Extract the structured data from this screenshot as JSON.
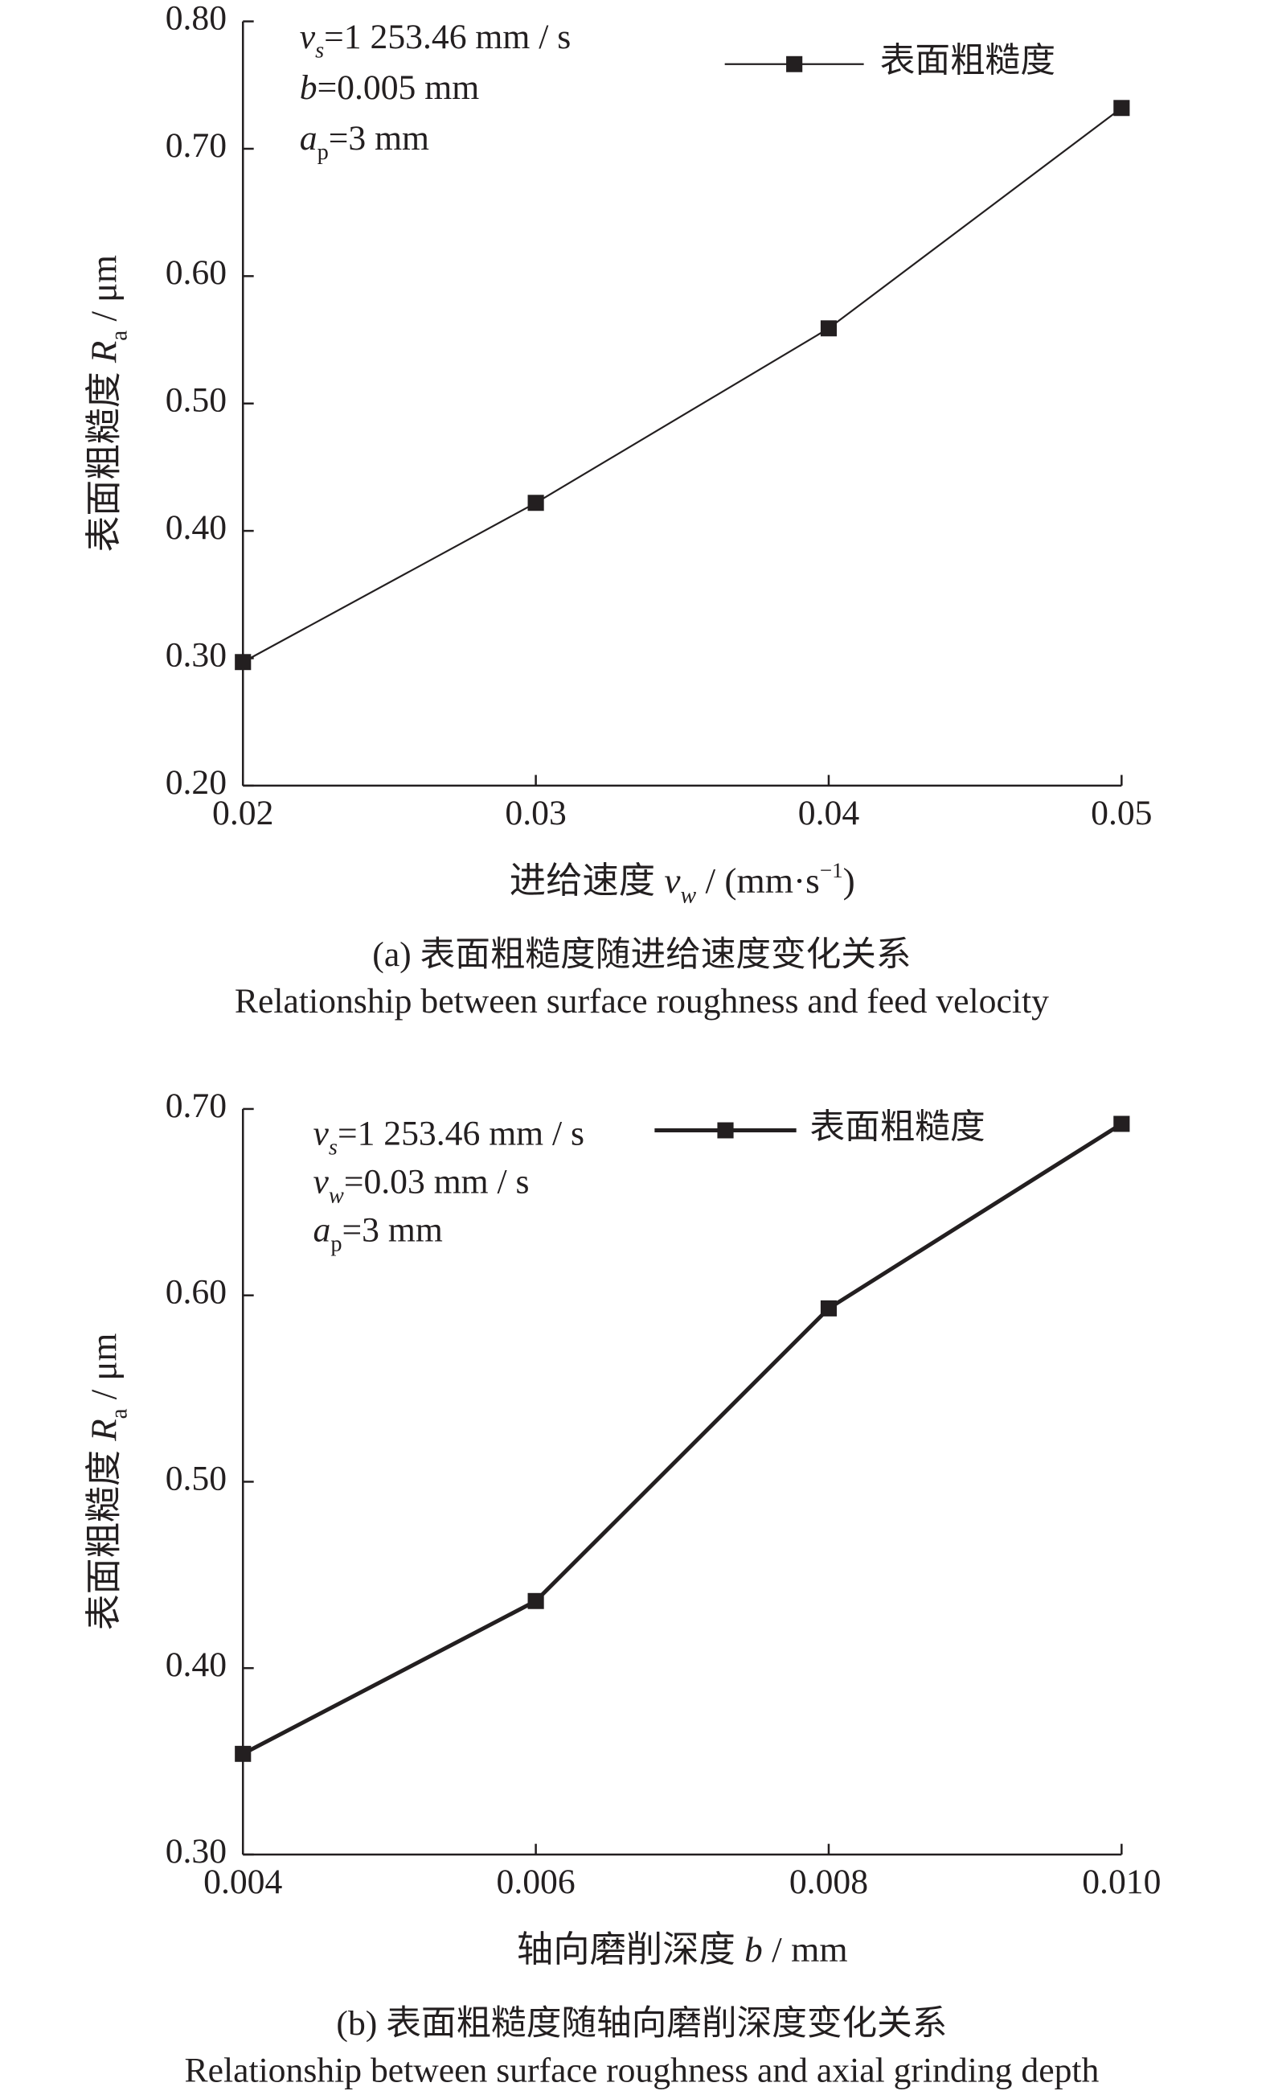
{
  "chart_data": [
    {
      "type": "line",
      "annotations": [
        [
          {
            "text": "v",
            "style": "italic"
          },
          {
            "text": "s",
            "style": "italic-sub"
          },
          {
            "text": "=1 253.46 mm / s"
          }
        ],
        [
          {
            "text": "b",
            "style": "italic"
          },
          {
            "text": "=0.005 mm"
          }
        ],
        [
          {
            "text": "a",
            "style": "italic"
          },
          {
            "text": "p",
            "style": "sub"
          },
          {
            "text": "=3 mm"
          }
        ]
      ],
      "x_label": [
        {
          "text": "进给速度 "
        },
        {
          "text": "v",
          "style": "italic"
        },
        {
          "text": "w",
          "style": "italic-sub"
        },
        {
          "text": " / (mm·s"
        },
        {
          "text": "−1",
          "style": "sup"
        },
        {
          "text": ")"
        }
      ],
      "y_label": [
        {
          "text": "表面粗糙度 "
        },
        {
          "text": "R",
          "style": "italic"
        },
        {
          "text": "a",
          "style": "sub"
        },
        {
          "text": " / μm"
        }
      ],
      "caption": "(a) 表面粗糙度随进给速度变化关系",
      "caption_en": "Relationship between surface roughness and feed velocity",
      "x": [
        0.02,
        0.03,
        0.04,
        0.05
      ],
      "series": [
        {
          "name": "表面粗糙度",
          "color": "#231f20",
          "values": [
            0.297,
            0.422,
            0.559,
            0.732
          ]
        }
      ],
      "line_width": 1.3,
      "xlim": [
        0.02,
        0.05
      ],
      "xticks": [
        0.02,
        0.03,
        0.04,
        0.05
      ],
      "ylim": [
        0.2,
        0.8
      ],
      "yticks": [
        {
          "value": 0.2,
          "label": "0.20"
        },
        {
          "value": 0.3,
          "label": "0.30"
        },
        {
          "value": 0.4,
          "label": "0.40"
        },
        {
          "value": 0.5,
          "label": "0.50"
        },
        {
          "value": 0.6,
          "label": "0.60"
        },
        {
          "value": 0.7,
          "label": "0.70"
        },
        {
          "value": 0.8,
          "label": "0.80"
        }
      ],
      "legend": "upper right",
      "grid": false
    },
    {
      "type": "line",
      "annotations": [
        [
          {
            "text": "v",
            "style": "italic"
          },
          {
            "text": "s",
            "style": "italic-sub"
          },
          {
            "text": "=1 253.46 mm / s"
          }
        ],
        [
          {
            "text": "v",
            "style": "italic"
          },
          {
            "text": "w",
            "style": "italic-sub"
          },
          {
            "text": "=0.03 mm / s"
          }
        ],
        [
          {
            "text": "a",
            "style": "italic"
          },
          {
            "text": "p",
            "style": "sub"
          },
          {
            "text": "=3 mm"
          }
        ]
      ],
      "x_label": [
        {
          "text": "轴向磨削深度 "
        },
        {
          "text": "b",
          "style": "italic"
        },
        {
          "text": " / mm"
        }
      ],
      "y_label": [
        {
          "text": "表面粗糙度 "
        },
        {
          "text": "R",
          "style": "italic"
        },
        {
          "text": "a",
          "style": "sub"
        },
        {
          "text": " / μm"
        }
      ],
      "caption": "(b) 表面粗糙度随轴向磨削深度变化关系",
      "caption_en": "Relationship between surface roughness and axial grinding depth",
      "x": [
        0.004,
        0.006,
        0.008,
        0.01
      ],
      "series": [
        {
          "name": "表面粗糙度",
          "color": "#231f20",
          "values": [
            0.354,
            0.436,
            0.593,
            0.692
          ]
        }
      ],
      "line_width": 3,
      "xlim": [
        0.004,
        0.01
      ],
      "xticks": [
        0.004,
        0.006,
        0.008,
        {
          "value": 0.01,
          "label": "0.010"
        }
      ],
      "ylim": [
        0.3,
        0.7
      ],
      "yticks": [
        {
          "value": 0.3,
          "label": "0.30"
        },
        {
          "value": 0.4,
          "label": "0.40"
        },
        {
          "value": 0.5,
          "label": "0.50"
        },
        {
          "value": 0.6,
          "label": "0.60"
        },
        {
          "value": 0.7,
          "label": "0.70"
        }
      ],
      "legend": "upper right",
      "grid": false
    }
  ]
}
